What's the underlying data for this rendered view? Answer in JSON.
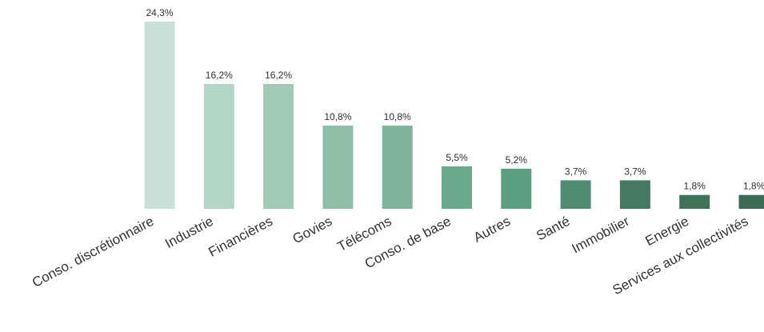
{
  "chart_data": {
    "type": "bar",
    "categories": [
      "Conso. discrétionnaire",
      "Industrie",
      "Financières",
      "Govies",
      "Télécoms",
      "Conso. de base",
      "Autres",
      "Santé",
      "Immobilier",
      "Energie",
      "Services aux collectivités"
    ],
    "values": [
      24.3,
      16.2,
      16.2,
      10.8,
      10.8,
      5.5,
      5.2,
      3.7,
      3.7,
      1.8,
      1.8
    ],
    "data_labels": [
      "24,3%",
      "16,2%",
      "16,2%",
      "10,8%",
      "10,8%",
      "5,5%",
      "5,2%",
      "3,7%",
      "3,7%",
      "1,8%",
      "1,8%"
    ],
    "colors": [
      "#c8e0d8",
      "#b3d6c6",
      "#a1c9b5",
      "#8ebea8",
      "#7fb59c",
      "#6aa98b",
      "#5c9f80",
      "#4f8d72",
      "#457a62",
      "#3f7358",
      "#3a6c53"
    ],
    "ylim": [
      0,
      24.3
    ],
    "grid": false,
    "legend": "none"
  }
}
